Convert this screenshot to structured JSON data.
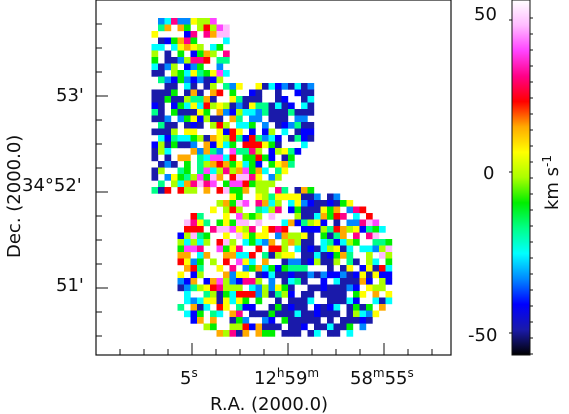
{
  "chart_data": {
    "type": "heatmap",
    "title": "",
    "x_axis": {
      "label": "R.A. (2000.0)",
      "ticks": [
        {
          "text": "5",
          "sup": "s"
        },
        {
          "text": "12",
          "sup": "h",
          "text2": "59",
          "sup2": "m"
        },
        {
          "text": "58",
          "sup": "m",
          "text2": "55",
          "sup2": "s"
        }
      ]
    },
    "y_axis": {
      "label": "Dec. (2000.0)",
      "ticks": [
        "53'",
        "34°52'",
        "51'"
      ]
    },
    "colorbar": {
      "label": "km s",
      "label_sup": "-1",
      "range": [
        -57,
        57
      ],
      "ticks": [
        "50",
        "0",
        "-50"
      ],
      "colors": [
        "#000000",
        "#1a1aaa",
        "#0000ff",
        "#0088ff",
        "#00ffff",
        "#00ff88",
        "#00ee00",
        "#aaff00",
        "#ffff00",
        "#ffaa00",
        "#ff0000",
        "#ff0088",
        "#ff44ff",
        "#ffbbff",
        "#ffffff"
      ]
    },
    "grid": false
  }
}
